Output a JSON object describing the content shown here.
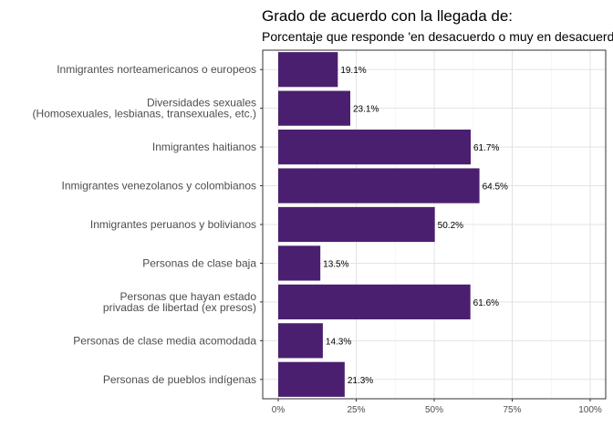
{
  "chart_data": {
    "type": "bar",
    "orientation": "horizontal",
    "title": "Grado de acuerdo con la llegada de:",
    "subtitle": "Porcentaje que responde 'en desacuerdo o muy en desacuerdo'",
    "categories": [
      "Inmigrantes norteamericanos o europeos",
      "Diversidades  sexuales\n(Homosexuales, lesbianas, transexuales, etc.)",
      "Inmigrantes haitianos",
      "Inmigrantes venezolanos y colombianos",
      "Inmigrantes peruanos y bolivianos",
      "Personas de clase baja",
      "Personas que hayan estado\nprivadas de libertad (ex presos)",
      "Personas de clase media acomodada",
      "Personas  de  pueblos  indígenas"
    ],
    "values": [
      19.1,
      23.1,
      61.7,
      64.5,
      50.2,
      13.5,
      61.6,
      14.3,
      21.3
    ],
    "data_labels": [
      "19.1%",
      "23.1%",
      "61.7%",
      "64.5%",
      "50.2%",
      "13.5%",
      "61.6%",
      "14.3%",
      "21.3%"
    ],
    "x_ticks": [
      0,
      25,
      50,
      75,
      100
    ],
    "x_tick_labels": [
      "0%",
      "25%",
      "50%",
      "75%",
      "100%"
    ],
    "xlim": [
      0,
      100
    ],
    "bar_color": "#4B1F6F",
    "grid": true,
    "panel_border": true
  }
}
